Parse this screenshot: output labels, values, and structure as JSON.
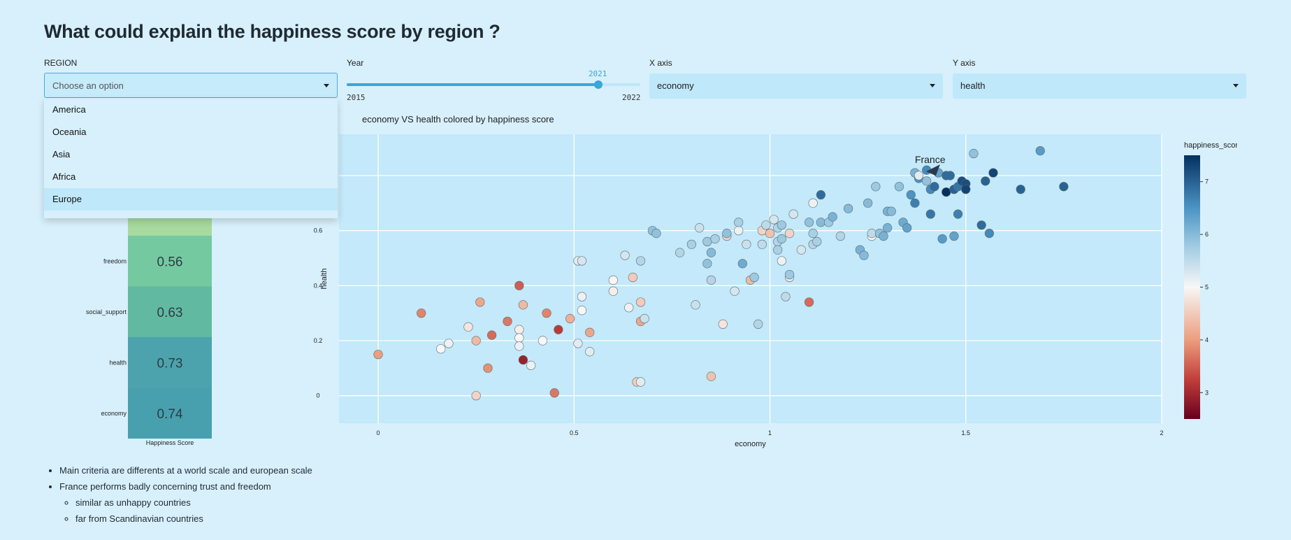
{
  "page": {
    "title": "What could explain the happiness score by region ?"
  },
  "filters": {
    "region": {
      "label": "REGION",
      "placeholder": "Choose an option",
      "options": [
        "America",
        "Oceania",
        "Asia",
        "Africa",
        "Europe"
      ],
      "highlighted": "Europe"
    },
    "year": {
      "label": "Year",
      "value": "2021",
      "min": "2015",
      "max": "2022",
      "fraction": 0.857
    },
    "x_axis": {
      "label": "X axis",
      "value": "economy"
    },
    "y_axis": {
      "label": "Y axis",
      "value": "health"
    }
  },
  "heatmap": {
    "xlabel": "Happiness Score",
    "rows": [
      {
        "name": "freedom",
        "value": 0.56,
        "color": "#75c9a1"
      },
      {
        "name": "social_support",
        "value": 0.63,
        "color": "#62b9a2"
      },
      {
        "name": "health",
        "value": 0.73,
        "color": "#4da3ad"
      },
      {
        "name": "economy",
        "value": 0.74,
        "color": "#48a0ae"
      }
    ]
  },
  "chart_data": {
    "type": "scatter",
    "title": "economy VS health colored by happiness score",
    "xlabel": "economy",
    "ylabel": "health",
    "xlim": [
      -0.1,
      2.0
    ],
    "ylim": [
      -0.1,
      0.95
    ],
    "x_ticks": [
      "0",
      "0.5",
      "1",
      "1.5",
      "2"
    ],
    "y_ticks": [
      "0",
      "0.2",
      "0.4",
      "0.6"
    ],
    "colorbar": {
      "title": "happiness_score",
      "ticks": [
        "3",
        "4",
        "5",
        "6",
        "7"
      ],
      "range": [
        2.5,
        7.5
      ]
    },
    "annotation": {
      "text": "France",
      "x": 1.42,
      "y": 0.82
    },
    "points": [
      [
        0.0,
        0.15,
        4.0
      ],
      [
        0.11,
        0.3,
        3.8
      ],
      [
        0.16,
        0.17,
        5.0
      ],
      [
        0.18,
        0.19,
        5.1
      ],
      [
        0.23,
        0.25,
        4.8
      ],
      [
        0.25,
        0.2,
        4.3
      ],
      [
        0.25,
        0.0,
        4.6
      ],
      [
        0.26,
        0.34,
        4.1
      ],
      [
        0.28,
        0.1,
        3.9
      ],
      [
        0.29,
        0.22,
        3.6
      ],
      [
        0.33,
        0.27,
        3.7
      ],
      [
        0.36,
        0.4,
        3.5
      ],
      [
        0.36,
        0.24,
        4.9
      ],
      [
        0.36,
        0.21,
        5.0
      ],
      [
        0.36,
        0.18,
        5.1
      ],
      [
        0.37,
        0.33,
        4.3
      ],
      [
        0.37,
        0.13,
        2.9
      ],
      [
        0.39,
        0.11,
        5.1
      ],
      [
        0.42,
        0.2,
        5.0
      ],
      [
        0.43,
        0.3,
        3.8
      ],
      [
        0.45,
        0.01,
        3.7
      ],
      [
        0.46,
        0.24,
        3.2
      ],
      [
        0.49,
        0.28,
        4.2
      ],
      [
        0.51,
        0.49,
        5.2
      ],
      [
        0.51,
        0.19,
        5.2
      ],
      [
        0.52,
        0.31,
        5.0
      ],
      [
        0.52,
        0.36,
        5.1
      ],
      [
        0.52,
        0.49,
        5.3
      ],
      [
        0.54,
        0.23,
        4.1
      ],
      [
        0.54,
        0.16,
        5.2
      ],
      [
        0.6,
        0.42,
        5.0
      ],
      [
        0.6,
        0.38,
        4.9
      ],
      [
        0.63,
        0.51,
        5.3
      ],
      [
        0.64,
        0.32,
        5.1
      ],
      [
        0.65,
        0.43,
        4.5
      ],
      [
        0.66,
        0.05,
        4.5
      ],
      [
        0.67,
        0.05,
        5.2
      ],
      [
        0.67,
        0.27,
        4.1
      ],
      [
        0.67,
        0.34,
        4.5
      ],
      [
        0.67,
        0.49,
        5.6
      ],
      [
        0.68,
        0.28,
        5.4
      ],
      [
        0.7,
        0.6,
        5.9
      ],
      [
        0.71,
        0.59,
        5.9
      ],
      [
        0.77,
        0.52,
        5.6
      ],
      [
        0.8,
        0.55,
        5.7
      ],
      [
        0.81,
        0.33,
        5.4
      ],
      [
        0.82,
        0.61,
        5.4
      ],
      [
        0.84,
        0.56,
        5.8
      ],
      [
        0.84,
        0.48,
        5.9
      ],
      [
        0.85,
        0.42,
        5.6
      ],
      [
        0.85,
        0.52,
        6.0
      ],
      [
        0.85,
        0.07,
        4.4
      ],
      [
        0.86,
        0.57,
        5.7
      ],
      [
        0.88,
        0.26,
        4.8
      ],
      [
        0.89,
        0.58,
        4.6
      ],
      [
        0.89,
        0.59,
        5.9
      ],
      [
        0.91,
        0.38,
        5.3
      ],
      [
        0.92,
        0.6,
        5.1
      ],
      [
        0.92,
        0.63,
        5.7
      ],
      [
        0.93,
        0.48,
        6.2
      ],
      [
        0.94,
        0.55,
        5.4
      ],
      [
        0.95,
        0.42,
        4.3
      ],
      [
        0.96,
        0.43,
        5.8
      ],
      [
        0.97,
        0.26,
        5.6
      ],
      [
        0.98,
        0.55,
        5.5
      ],
      [
        0.98,
        0.6,
        4.6
      ],
      [
        0.99,
        0.62,
        5.5
      ],
      [
        1.0,
        0.59,
        4.4
      ],
      [
        1.01,
        0.64,
        5.3
      ],
      [
        1.02,
        0.61,
        5.6
      ],
      [
        1.02,
        0.56,
        5.6
      ],
      [
        1.02,
        0.53,
        5.7
      ],
      [
        1.03,
        0.57,
        5.8
      ],
      [
        1.03,
        0.49,
        5.1
      ],
      [
        1.03,
        0.62,
        5.8
      ],
      [
        1.04,
        0.36,
        5.5
      ],
      [
        1.05,
        0.43,
        5.2
      ],
      [
        1.05,
        0.44,
        5.8
      ],
      [
        1.05,
        0.59,
        4.6
      ],
      [
        1.06,
        0.66,
        5.3
      ],
      [
        1.08,
        0.53,
        5.3
      ],
      [
        1.1,
        0.34,
        3.6
      ],
      [
        1.1,
        0.63,
        5.9
      ],
      [
        1.11,
        0.55,
        5.6
      ],
      [
        1.11,
        0.59,
        5.7
      ],
      [
        1.11,
        0.7,
        5.1
      ],
      [
        1.12,
        0.56,
        5.7
      ],
      [
        1.13,
        0.63,
        6.0
      ],
      [
        1.13,
        0.73,
        6.9
      ],
      [
        1.15,
        0.63,
        5.8
      ],
      [
        1.16,
        0.65,
        6.1
      ],
      [
        1.18,
        0.58,
        5.6
      ],
      [
        1.2,
        0.68,
        6.0
      ],
      [
        1.23,
        0.53,
        6.1
      ],
      [
        1.24,
        0.51,
        6.0
      ],
      [
        1.25,
        0.7,
        6.0
      ],
      [
        1.26,
        0.58,
        5.0
      ],
      [
        1.26,
        0.59,
        5.5
      ],
      [
        1.27,
        0.76,
        5.8
      ],
      [
        1.28,
        0.59,
        5.9
      ],
      [
        1.29,
        0.58,
        6.1
      ],
      [
        1.3,
        0.67,
        6.1
      ],
      [
        1.3,
        0.61,
        6.1
      ],
      [
        1.31,
        0.67,
        6.0
      ],
      [
        1.33,
        0.76,
        5.9
      ],
      [
        1.34,
        0.63,
        6.2
      ],
      [
        1.35,
        0.61,
        6.3
      ],
      [
        1.36,
        0.73,
        6.5
      ],
      [
        1.37,
        0.7,
        6.7
      ],
      [
        1.37,
        0.81,
        6.1
      ],
      [
        1.38,
        0.79,
        6.5
      ],
      [
        1.38,
        0.8,
        5.2
      ],
      [
        1.4,
        0.82,
        6.6
      ],
      [
        1.4,
        0.78,
        5.9
      ],
      [
        1.41,
        0.66,
        6.8
      ],
      [
        1.41,
        0.75,
        6.6
      ],
      [
        1.42,
        0.76,
        6.9
      ],
      [
        1.43,
        0.81,
        6.3
      ],
      [
        1.44,
        0.57,
        6.4
      ],
      [
        1.45,
        0.74,
        7.6
      ],
      [
        1.45,
        0.8,
        6.9
      ],
      [
        1.46,
        0.8,
        6.9
      ],
      [
        1.47,
        0.58,
        6.3
      ],
      [
        1.47,
        0.75,
        7.0
      ],
      [
        1.48,
        0.76,
        6.8
      ],
      [
        1.48,
        0.66,
        6.7
      ],
      [
        1.49,
        0.78,
        7.2
      ],
      [
        1.5,
        0.77,
        7.2
      ],
      [
        1.5,
        0.75,
        7.3
      ],
      [
        1.52,
        0.88,
        5.9
      ],
      [
        1.54,
        0.62,
        6.9
      ],
      [
        1.55,
        0.78,
        7.0
      ],
      [
        1.56,
        0.59,
        6.6
      ],
      [
        1.57,
        0.81,
        7.3
      ],
      [
        1.64,
        0.75,
        7.0
      ],
      [
        1.69,
        0.89,
        6.4
      ],
      [
        1.75,
        0.76,
        7.0
      ]
    ]
  },
  "notes": {
    "items": [
      "Main criteria are differents at a world scale and european scale",
      "France performs badly concerning trust and freedom"
    ],
    "subitems": [
      "similar as unhappy countries",
      "far from Scandinavian countries"
    ]
  },
  "colors": {
    "accent": "#3aa6da",
    "background": "#d7f0fc",
    "panel": "#bfe8fa",
    "plot_bg": "#c3e9fa"
  }
}
